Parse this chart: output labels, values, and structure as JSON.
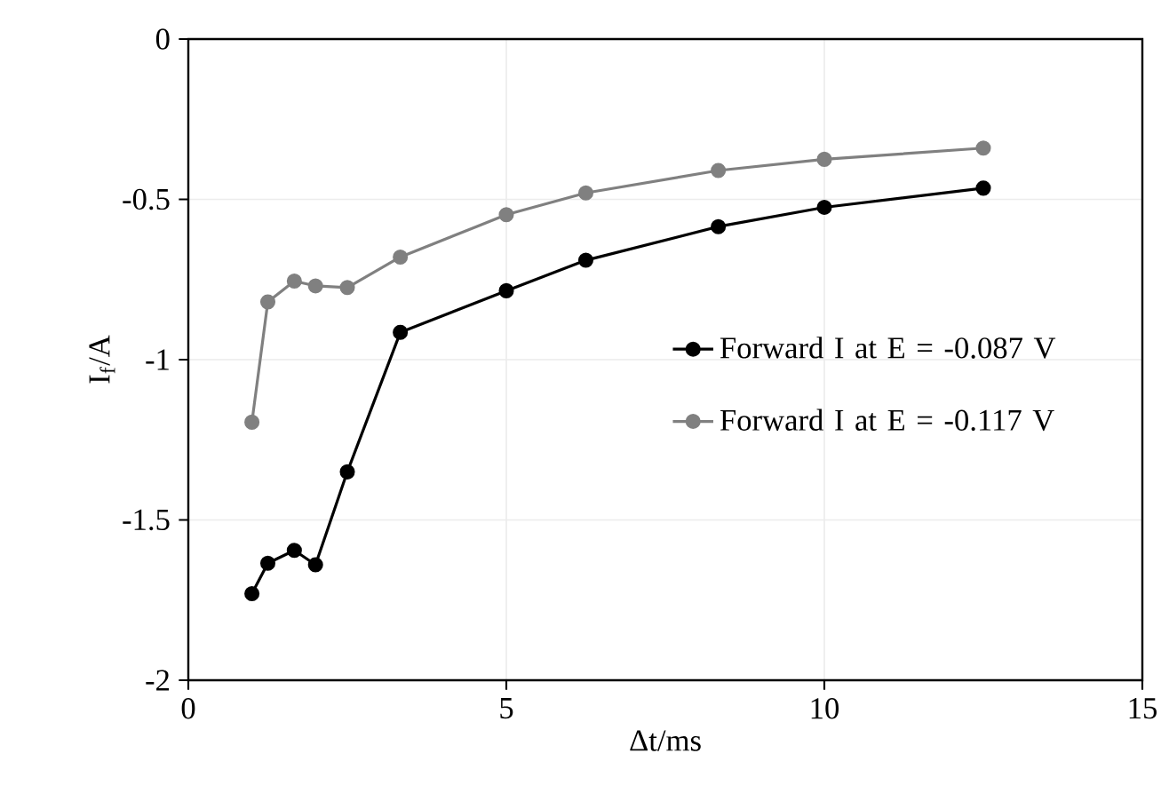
{
  "chart_data": {
    "type": "line",
    "xlabel": "Δt/ms",
    "ylabel": "I$_{f}$/A",
    "x": [
      1,
      1.25,
      1.667,
      2,
      2.5,
      3.333,
      5,
      6.25,
      8.333,
      10,
      12.5
    ],
    "series": [
      {
        "name": "Forward I at E = -0.087 V",
        "color": "#000000",
        "values": [
          -1.73,
          -1.635,
          -1.595,
          -1.64,
          -1.35,
          -0.915,
          -0.785,
          -0.69,
          -0.585,
          -0.525,
          -0.465
        ]
      },
      {
        "name": "Forward I at E = -0.117 V",
        "color": "#808080",
        "values": [
          -1.195,
          -0.82,
          -0.755,
          -0.77,
          -0.775,
          -0.68,
          -0.548,
          -0.48,
          -0.41,
          -0.375,
          -0.34
        ]
      }
    ],
    "xlim": [
      0,
      15
    ],
    "ylim": [
      -2,
      0
    ],
    "xticks": [
      0,
      5,
      10,
      15
    ],
    "yticks": [
      -2,
      -1.5,
      -1,
      -0.5,
      0
    ],
    "grid": true,
    "legend": "right",
    "marker": "circle",
    "line_style": "solid"
  }
}
